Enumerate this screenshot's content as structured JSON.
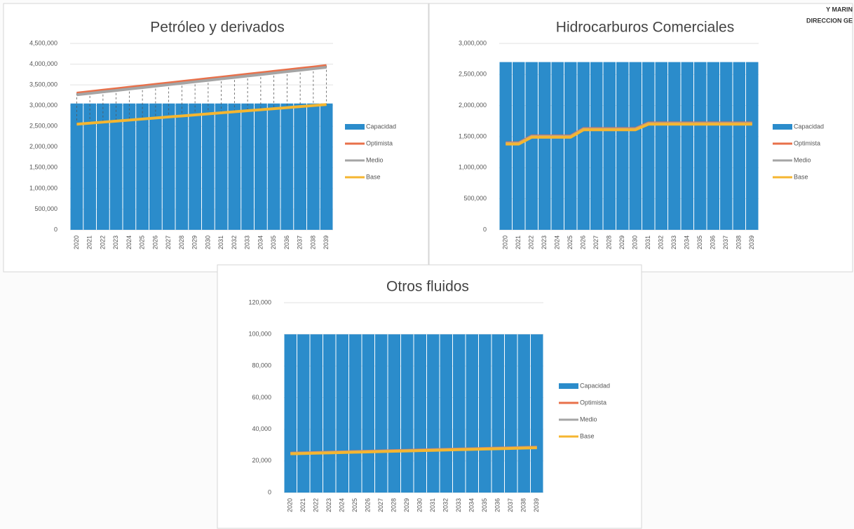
{
  "stamp": [
    "Y MARIN",
    "DIRECCION GE"
  ],
  "chart_data": [
    {
      "type": "combo",
      "title": "Petróleo y derivados",
      "categories": [
        "2020",
        "2021",
        "2022",
        "2023",
        "2024",
        "2025",
        "2026",
        "2027",
        "2028",
        "2029",
        "2030",
        "2031",
        "2032",
        "2033",
        "2034",
        "2035",
        "2036",
        "2037",
        "2038",
        "2039"
      ],
      "ylim": [
        0,
        4500000
      ],
      "yticks": [
        0,
        {
          "value": 500000,
          "label": "500,000"
        },
        {
          "value": 1000000,
          "label": "1,000,000"
        },
        {
          "value": 1500000,
          "label": "1,500,000"
        },
        {
          "value": 2000000,
          "label": "2,000,000"
        },
        {
          "value": 2500000,
          "label": "2,500,000"
        },
        {
          "value": 3000000,
          "label": "3,000,000"
        },
        {
          "value": 3500000,
          "label": "3,500,000"
        },
        {
          "value": 4000000,
          "label": "4,000,000"
        },
        {
          "value": 4500000,
          "label": "4,500,000"
        }
      ],
      "drop_lines": true,
      "legend": "right",
      "series": [
        {
          "name": "Capacidad",
          "type": "bar",
          "color": "#2b8ccb",
          "values": [
            3050000,
            3050000,
            3050000,
            3050000,
            3050000,
            3050000,
            3050000,
            3050000,
            3050000,
            3050000,
            3050000,
            3050000,
            3050000,
            3050000,
            3050000,
            3050000,
            3050000,
            3050000,
            3050000,
            3050000
          ]
        },
        {
          "name": "Optimista",
          "type": "line",
          "color": "#e8704a",
          "values": [
            3300000,
            3335000,
            3370000,
            3405000,
            3440000,
            3475000,
            3510000,
            3545000,
            3580000,
            3615000,
            3650000,
            3685000,
            3720000,
            3755000,
            3790000,
            3825000,
            3860000,
            3895000,
            3930000,
            3965000
          ]
        },
        {
          "name": "Medio",
          "type": "line",
          "color": "#a5a5a5",
          "values": [
            3260000,
            3295000,
            3330000,
            3365000,
            3400000,
            3435000,
            3470000,
            3505000,
            3540000,
            3575000,
            3610000,
            3645000,
            3680000,
            3715000,
            3750000,
            3785000,
            3820000,
            3855000,
            3890000,
            3925000
          ]
        },
        {
          "name": "Base",
          "type": "line",
          "color": "#f5b630",
          "values": [
            2550000,
            2575000,
            2600000,
            2625000,
            2650000,
            2675000,
            2700000,
            2725000,
            2750000,
            2775000,
            2800000,
            2825000,
            2850000,
            2875000,
            2900000,
            2925000,
            2950000,
            2975000,
            3000000,
            3025000
          ]
        }
      ]
    },
    {
      "type": "combo",
      "title": "Hidrocarburos Comerciales",
      "categories": [
        "2020",
        "2021",
        "2022",
        "2023",
        "2024",
        "2025",
        "2026",
        "2027",
        "2028",
        "2029",
        "2030",
        "2031",
        "2032",
        "2033",
        "2034",
        "2035",
        "2036",
        "2037",
        "2038",
        "2039"
      ],
      "ylim": [
        0,
        3000000
      ],
      "yticks": [
        0,
        {
          "value": 500000,
          "label": "500,000"
        },
        {
          "value": 1000000,
          "label": "1,000,000"
        },
        {
          "value": 1500000,
          "label": "1,500,000"
        },
        {
          "value": 2000000,
          "label": "2,000,000"
        },
        {
          "value": 2500000,
          "label": "2,500,000"
        },
        {
          "value": 3000000,
          "label": "3,000,000"
        }
      ],
      "drop_lines": false,
      "legend": "right",
      "series": [
        {
          "name": "Capacidad",
          "type": "bar",
          "color": "#2b8ccb",
          "values": [
            2700000,
            2700000,
            2700000,
            2700000,
            2700000,
            2700000,
            2700000,
            2700000,
            2700000,
            2700000,
            2700000,
            2700000,
            2700000,
            2700000,
            2700000,
            2700000,
            2700000,
            2700000,
            2700000,
            2700000
          ]
        },
        {
          "name": "Optimista",
          "type": "line",
          "color": "#e8704a",
          "values": [
            1400000,
            1400000,
            1510000,
            1510000,
            1510000,
            1510000,
            1630000,
            1630000,
            1630000,
            1630000,
            1630000,
            1720000,
            1720000,
            1720000,
            1720000,
            1720000,
            1720000,
            1720000,
            1720000,
            1720000
          ]
        },
        {
          "name": "Medio",
          "type": "line",
          "color": "#a5a5a5",
          "values": [
            1390000,
            1390000,
            1500000,
            1500000,
            1500000,
            1500000,
            1620000,
            1620000,
            1620000,
            1620000,
            1620000,
            1710000,
            1710000,
            1710000,
            1710000,
            1710000,
            1710000,
            1710000,
            1710000,
            1710000
          ]
        },
        {
          "name": "Base",
          "type": "line",
          "color": "#f5b630",
          "values": [
            1380000,
            1380000,
            1490000,
            1490000,
            1490000,
            1490000,
            1610000,
            1610000,
            1610000,
            1610000,
            1610000,
            1700000,
            1700000,
            1700000,
            1700000,
            1700000,
            1700000,
            1700000,
            1700000,
            1700000
          ]
        }
      ]
    },
    {
      "type": "combo",
      "title": "Otros fluidos",
      "categories": [
        "2020",
        "2021",
        "2022",
        "2023",
        "2024",
        "2025",
        "2026",
        "2027",
        "2028",
        "2029",
        "2030",
        "2031",
        "2032",
        "2033",
        "2034",
        "2035",
        "2036",
        "2037",
        "2038",
        "2039"
      ],
      "ylim": [
        0,
        120000
      ],
      "yticks": [
        0,
        {
          "value": 20000,
          "label": "20,000"
        },
        {
          "value": 40000,
          "label": "40,000"
        },
        {
          "value": 60000,
          "label": "60,000"
        },
        {
          "value": 80000,
          "label": "80,000"
        },
        {
          "value": 100000,
          "label": "100,000"
        },
        {
          "value": 120000,
          "label": "120,000"
        }
      ],
      "drop_lines": false,
      "legend": "right",
      "series": [
        {
          "name": "Capacidad",
          "type": "bar",
          "color": "#2b8ccb",
          "values": [
            100000,
            100000,
            100000,
            100000,
            100000,
            100000,
            100000,
            100000,
            100000,
            100000,
            100000,
            100000,
            100000,
            100000,
            100000,
            100000,
            100000,
            100000,
            100000,
            100000
          ]
        },
        {
          "name": "Optimista",
          "type": "line",
          "color": "#e8704a",
          "values": [
            24900,
            25100,
            25300,
            25500,
            25700,
            25900,
            26100,
            26300,
            26500,
            26700,
            26900,
            27100,
            27300,
            27500,
            27700,
            27900,
            28100,
            28300,
            28500,
            28700
          ]
        },
        {
          "name": "Medio",
          "type": "line",
          "color": "#a5a5a5",
          "values": [
            24700,
            24900,
            25100,
            25300,
            25500,
            25700,
            25900,
            26100,
            26300,
            26500,
            26700,
            26900,
            27100,
            27300,
            27500,
            27700,
            27900,
            28100,
            28300,
            28500
          ]
        },
        {
          "name": "Base",
          "type": "line",
          "color": "#f5b630",
          "values": [
            24500,
            24700,
            24900,
            25100,
            25300,
            25500,
            25700,
            25900,
            26100,
            26300,
            26500,
            26700,
            26900,
            27100,
            27300,
            27500,
            27700,
            27900,
            28100,
            28300
          ]
        }
      ]
    }
  ]
}
